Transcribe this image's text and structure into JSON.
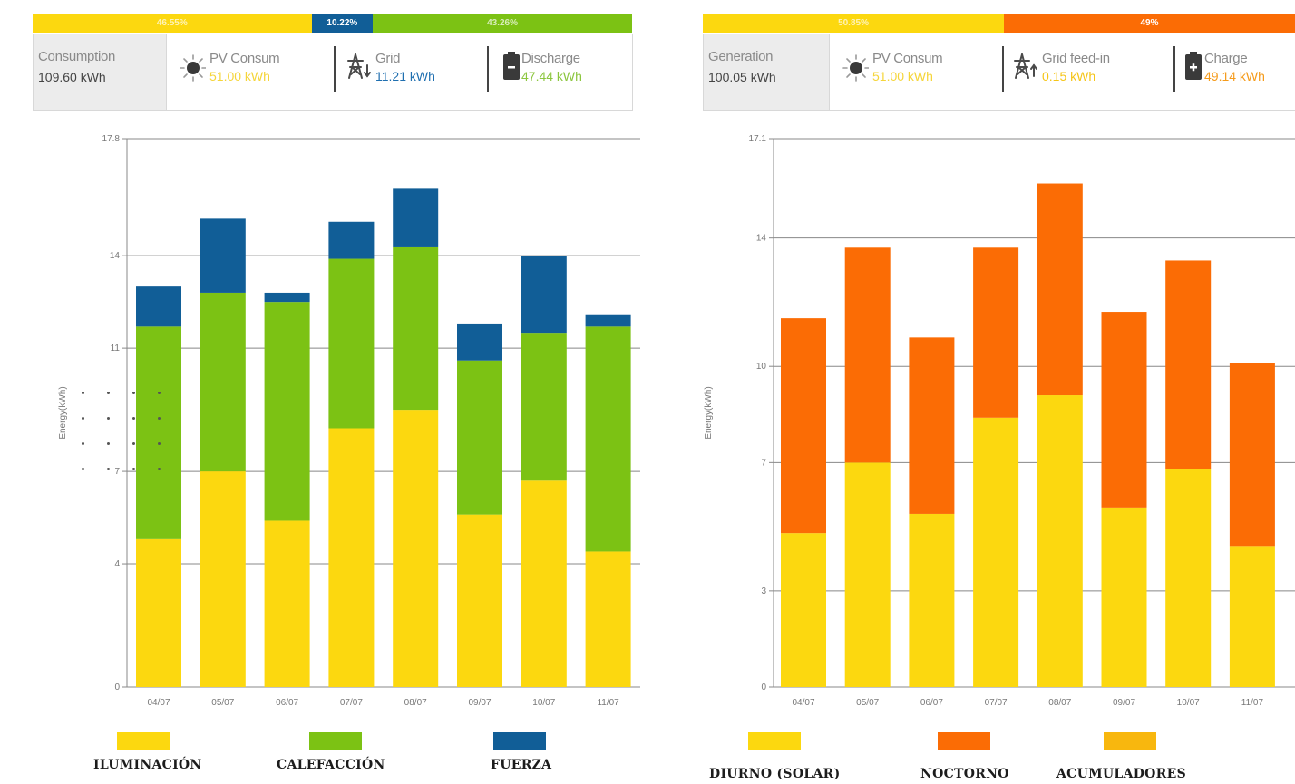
{
  "colors": {
    "yellow": "#fcd80f",
    "green": "#7cc214",
    "blue": "#115e97",
    "orange": "#fb6c05",
    "amber": "#f8b70e",
    "grid": "#888888"
  },
  "left": {
    "percent_bar": [
      {
        "label": "46.55%",
        "value": 46.55,
        "color": "#fcd80f"
      },
      {
        "label": "10.22%",
        "value": 10.22,
        "color": "#115e97"
      },
      {
        "label": "43.26%",
        "value": 43.26,
        "color": "#7cc214"
      }
    ],
    "summary": {
      "label": "Consumption",
      "value": "109.60 kWh"
    },
    "items": [
      {
        "icon": "sun-icon",
        "label": "PV Consum",
        "value": "51.00 kWh",
        "value_color": "#f5d53a"
      },
      {
        "icon": "power-tower-icon",
        "label": "Grid",
        "value": "11.21 kWh",
        "value_color": "#1f6fb0"
      },
      {
        "icon": "battery-discharge-icon",
        "label": "Discharge",
        "value": "47.44 kWh",
        "value_color": "#8cc63f"
      }
    ]
  },
  "right": {
    "percent_bar": [
      {
        "label": "50.85%",
        "value": 50.85,
        "color": "#fcd80f"
      },
      {
        "label": "49%",
        "value": 49.15,
        "color": "#fb6c05"
      }
    ],
    "summary": {
      "label": "Generation",
      "value": "100.05 kWh"
    },
    "items": [
      {
        "icon": "sun-icon",
        "label": "PV Consum",
        "value": "51.00 kWh",
        "value_color": "#f5d53a"
      },
      {
        "icon": "power-tower-feed-in-icon",
        "label": "Grid feed-in",
        "value": "0.15 kWh",
        "value_color": "#f5c518"
      },
      {
        "icon": "battery-charge-icon",
        "label": "Charge",
        "value": "49.14 kWh",
        "value_color": "#f59b1b"
      }
    ]
  },
  "chart_data": [
    {
      "type": "bar",
      "stacked": true,
      "categories": [
        "04/07",
        "05/07",
        "06/07",
        "07/07",
        "08/07",
        "09/07",
        "10/07",
        "11/07"
      ],
      "ylabel": "Energy(kWh)",
      "ylim": [
        0,
        17.8
      ],
      "yticks": [
        0,
        4,
        7,
        11,
        14,
        17.8
      ],
      "grid": true,
      "legend_position": "bottom",
      "series": [
        {
          "name": "ILUMINACIÓN",
          "color": "#fcd80f",
          "values": [
            4.8,
            7.0,
            5.4,
            8.4,
            9.0,
            5.6,
            6.7,
            4.4
          ]
        },
        {
          "name": "CALEFACCIÓN",
          "color": "#7cc214",
          "values": [
            6.9,
            5.8,
            7.1,
            5.5,
            5.3,
            5.0,
            4.8,
            7.3
          ]
        },
        {
          "name": "FUERZA",
          "color": "#115e97",
          "values": [
            1.3,
            2.4,
            0.3,
            1.2,
            1.9,
            1.2,
            2.5,
            0.4
          ]
        }
      ]
    },
    {
      "type": "bar",
      "stacked": true,
      "categories": [
        "04/07",
        "05/07",
        "06/07",
        "07/07",
        "08/07",
        "09/07",
        "10/07",
        "11/07"
      ],
      "ylabel": "Energy(kWh)",
      "ylim": [
        0,
        17.1
      ],
      "yticks": [
        0,
        3,
        7,
        10,
        14,
        17.1
      ],
      "grid": true,
      "legend_position": "bottom",
      "series": [
        {
          "name": "DIURNO (SOLAR)",
          "color": "#fcd80f",
          "values": [
            4.8,
            7.0,
            5.4,
            8.4,
            9.1,
            5.6,
            6.8,
            4.4
          ]
        },
        {
          "name": "NOCTORNO",
          "color": "#fb6c05",
          "values": [
            6.7,
            6.7,
            5.5,
            5.3,
            6.6,
            6.1,
            6.5,
            5.7
          ]
        },
        {
          "name": "ACUMULADORES",
          "color": "#f8b70e",
          "values": [
            0,
            0,
            0,
            0,
            0,
            0,
            0,
            0
          ]
        }
      ]
    }
  ]
}
